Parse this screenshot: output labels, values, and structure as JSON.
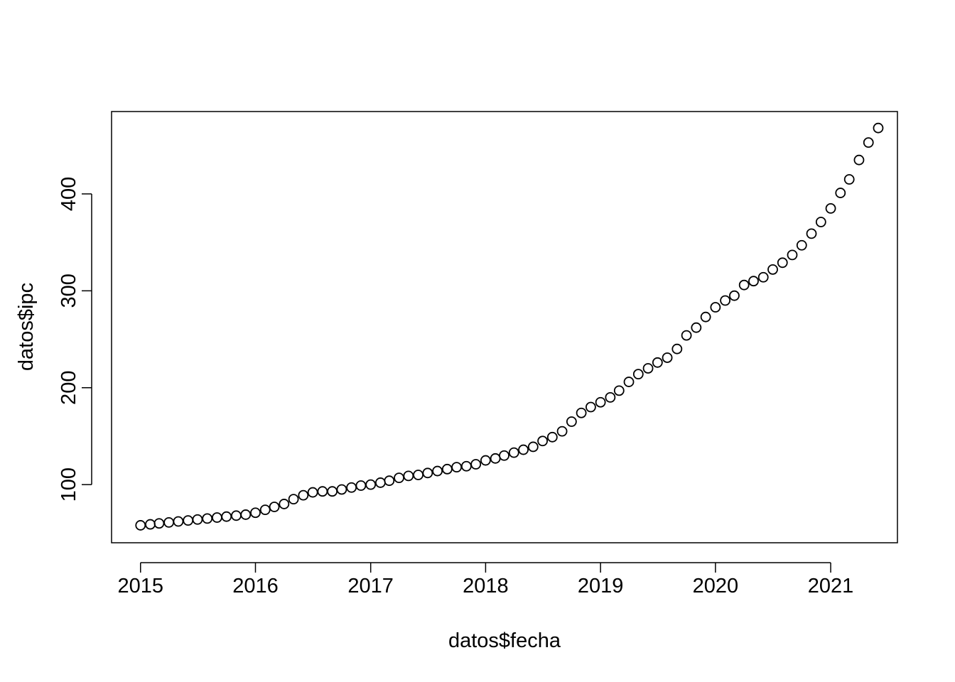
{
  "chart_data": {
    "type": "scatter",
    "title": "",
    "xlabel": "datos$fecha",
    "ylabel": "datos$ipc",
    "x_ticks": [
      "2015",
      "2016",
      "2017",
      "2018",
      "2019",
      "2020",
      "2021"
    ],
    "y_ticks": [
      "100",
      "200",
      "300",
      "400"
    ],
    "xlim": [
      "2014-10-01",
      "2021-08-01"
    ],
    "ylim": [
      40,
      485
    ],
    "grid": false,
    "marker": "open-circle",
    "point_color": "#000000",
    "x": [
      "2015-01-01",
      "2015-02-01",
      "2015-03-01",
      "2015-04-01",
      "2015-05-01",
      "2015-06-01",
      "2015-07-01",
      "2015-08-01",
      "2015-09-01",
      "2015-10-01",
      "2015-11-01",
      "2015-12-01",
      "2016-01-01",
      "2016-02-01",
      "2016-03-01",
      "2016-04-01",
      "2016-05-01",
      "2016-06-01",
      "2016-07-01",
      "2016-08-01",
      "2016-09-01",
      "2016-10-01",
      "2016-11-01",
      "2016-12-01",
      "2017-01-01",
      "2017-02-01",
      "2017-03-01",
      "2017-04-01",
      "2017-05-01",
      "2017-06-01",
      "2017-07-01",
      "2017-08-01",
      "2017-09-01",
      "2017-10-01",
      "2017-11-01",
      "2017-12-01",
      "2018-01-01",
      "2018-02-01",
      "2018-03-01",
      "2018-04-01",
      "2018-05-01",
      "2018-06-01",
      "2018-07-01",
      "2018-08-01",
      "2018-09-01",
      "2018-10-01",
      "2018-11-01",
      "2018-12-01",
      "2019-01-01",
      "2019-02-01",
      "2019-03-01",
      "2019-04-01",
      "2019-05-01",
      "2019-06-01",
      "2019-07-01",
      "2019-08-01",
      "2019-09-01",
      "2019-10-01",
      "2019-11-01",
      "2019-12-01",
      "2020-01-01",
      "2020-02-01",
      "2020-03-01",
      "2020-04-01",
      "2020-05-01",
      "2020-06-01",
      "2020-07-01",
      "2020-08-01",
      "2020-09-01",
      "2020-10-01",
      "2020-11-01",
      "2020-12-01",
      "2021-01-01",
      "2021-02-01",
      "2021-03-01",
      "2021-04-01",
      "2021-05-01",
      "2021-06-01"
    ],
    "y": [
      58,
      59,
      60,
      61,
      62,
      63,
      64,
      65,
      66,
      67,
      68,
      69,
      71,
      74,
      77,
      80,
      85,
      89,
      92,
      93,
      93,
      95,
      97,
      99,
      100,
      102,
      104,
      107,
      109,
      110,
      112,
      114,
      116,
      118,
      119,
      121,
      125,
      127,
      130,
      133,
      136,
      139,
      145,
      149,
      155,
      165,
      174,
      180,
      185,
      190,
      197,
      206,
      214,
      220,
      226,
      231,
      240,
      254,
      262,
      273,
      283,
      290,
      295,
      306,
      310,
      314,
      322,
      329,
      337,
      347,
      359,
      371,
      385,
      401,
      415,
      435,
      453,
      468
    ]
  }
}
